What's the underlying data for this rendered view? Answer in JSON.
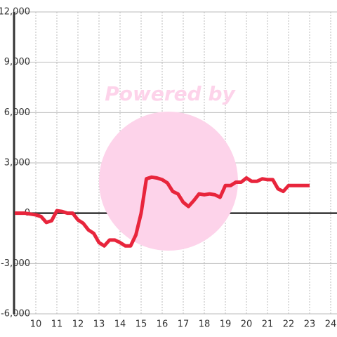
{
  "chart_data": {
    "type": "line",
    "watermark": "Powered by",
    "x": [
      9,
      9.5,
      10,
      10.25,
      10.5,
      10.75,
      11,
      11.25,
      11.5,
      11.75,
      12,
      12.25,
      12.5,
      12.75,
      13,
      13.25,
      13.5,
      13.75,
      14,
      14.25,
      14.5,
      14.75,
      15,
      15.25,
      15.5,
      15.75,
      16,
      16.25,
      16.5,
      16.75,
      17,
      17.25,
      17.5,
      17.75,
      18,
      18.25,
      18.5,
      18.75,
      19,
      19.25,
      19.5,
      19.75,
      20,
      20.25,
      20.5,
      20.75,
      21,
      21.25,
      21.5,
      21.75,
      22,
      22.5,
      23
    ],
    "values": [
      0,
      0,
      -100,
      -200,
      -550,
      -450,
      150,
      100,
      0,
      0,
      -400,
      -600,
      -1000,
      -1200,
      -1750,
      -1950,
      -1600,
      -1600,
      -1750,
      -1950,
      -1950,
      -1300,
      0,
      2050,
      2150,
      2100,
      2000,
      1800,
      1300,
      1150,
      650,
      400,
      750,
      1150,
      1100,
      1150,
      1100,
      950,
      1650,
      1650,
      1850,
      1850,
      2100,
      1900,
      1900,
      2050,
      2000,
      2000,
      1450,
      1300,
      1650,
      1650,
      1650
    ],
    "color": "#e8253c",
    "xlim": [
      9,
      24.3
    ],
    "xticks": [
      10,
      11,
      12,
      13,
      14,
      15,
      16,
      17,
      18,
      19,
      20,
      21,
      22,
      23,
      24
    ],
    "ylim": [
      -6000,
      12000
    ],
    "yticks": [
      {
        "value": -6000,
        "label": "-6,000"
      },
      {
        "value": -3000,
        "label": "-3,000"
      },
      0,
      {
        "value": 3000,
        "label": "3,000"
      },
      {
        "value": 6000,
        "label": "6,000"
      },
      {
        "value": 9000,
        "label": "9,000"
      },
      {
        "value": 12000,
        "label": "12,000"
      }
    ],
    "grid": true
  }
}
